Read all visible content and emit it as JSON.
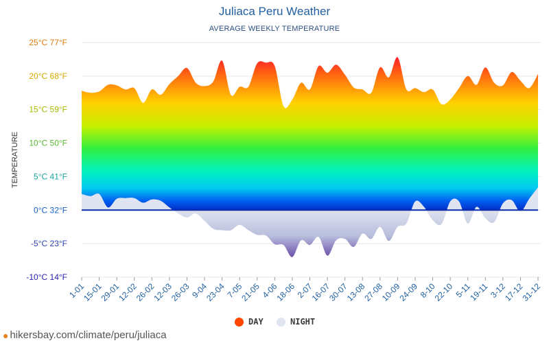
{
  "chart_data": {
    "type": "area",
    "title": "Juliaca Peru Weather",
    "subtitle": "AVERAGE WEEKLY TEMPERATURE",
    "ylabel": "TEMPERATURE",
    "ylim": [
      -10,
      25
    ],
    "y_ticks": [
      {
        "value": 25,
        "label": "25°C 77°F",
        "color": "#e07a10"
      },
      {
        "value": 20,
        "label": "20°C 68°F",
        "color": "#d6a800"
      },
      {
        "value": 15,
        "label": "15°C 59°F",
        "color": "#a8b800"
      },
      {
        "value": 10,
        "label": "10°C 50°F",
        "color": "#58b830"
      },
      {
        "value": 5,
        "label": "5°C 41°F",
        "color": "#1aa8a0"
      },
      {
        "value": 0,
        "label": "0°C 32°F",
        "color": "#1560c8"
      },
      {
        "value": -5,
        "label": "-5°C 23°F",
        "color": "#2a3fb0"
      },
      {
        "value": -10,
        "label": "-10°C 14°F",
        "color": "#2a1fb0"
      }
    ],
    "x_tick_labels": [
      "1-01",
      "15-01",
      "29-01",
      "12-02",
      "26-02",
      "12-03",
      "26-03",
      "9-04",
      "23-04",
      "7-05",
      "21-05",
      "4-06",
      "18-06",
      "2-07",
      "16-07",
      "30-07",
      "13-08",
      "27-08",
      "10-09",
      "24-09",
      "8-10",
      "22-10",
      "5-11",
      "19-11",
      "3-12",
      "17-12",
      "31-12"
    ],
    "series": [
      {
        "name": "DAY",
        "color": "#ff4500",
        "values": [
          17.8,
          17.5,
          17.7,
          18.7,
          18.6,
          18.0,
          18.2,
          16.0,
          18.0,
          17.2,
          18.8,
          20.0,
          21.2,
          19.0,
          18.5,
          19.2,
          22.3,
          17.2,
          18.4,
          18.4,
          21.9,
          22.0,
          21.5,
          15.5,
          16.5,
          19.0,
          18.0,
          21.5,
          20.5,
          21.7,
          20.2,
          18.3,
          18.0,
          17.5,
          21.3,
          19.8,
          22.8,
          18.0,
          18.2,
          17.6,
          18.0,
          15.8,
          16.5,
          18.2,
          20.0,
          18.7,
          21.3,
          19.0,
          18.6,
          20.6,
          19.3,
          18.2,
          20.3
        ]
      },
      {
        "name": "NIGHT",
        "color": "#dfe4f0",
        "values": [
          2.4,
          2.1,
          2.4,
          0.4,
          1.7,
          1.8,
          1.8,
          1.1,
          1.6,
          1.4,
          0.4,
          -0.5,
          -1.1,
          -0.5,
          -1.6,
          -2.8,
          -3.0,
          -3.0,
          -2.2,
          -3.0,
          -3.7,
          -3.8,
          -5.1,
          -5.2,
          -7.0,
          -4.5,
          -5.2,
          -4.0,
          -6.8,
          -4.5,
          -4.3,
          -5.5,
          -3.5,
          -4.3,
          -2.5,
          -4.6,
          -2.5,
          -2.0,
          1.3,
          0.5,
          -1.5,
          -2.1,
          1.3,
          1.3,
          -2.0,
          0.5,
          -1.2,
          -1.8,
          1.0,
          1.5,
          -0.2,
          1.7,
          3.4
        ]
      }
    ],
    "grid": true,
    "legend_position": "bottom-center"
  },
  "source": {
    "url_text": "hikersbay.com/climate/peru/juliaca"
  },
  "icons": {
    "legend_day": "day-dot",
    "legend_night": "night-dot",
    "source_pin": "map-pin-icon"
  }
}
